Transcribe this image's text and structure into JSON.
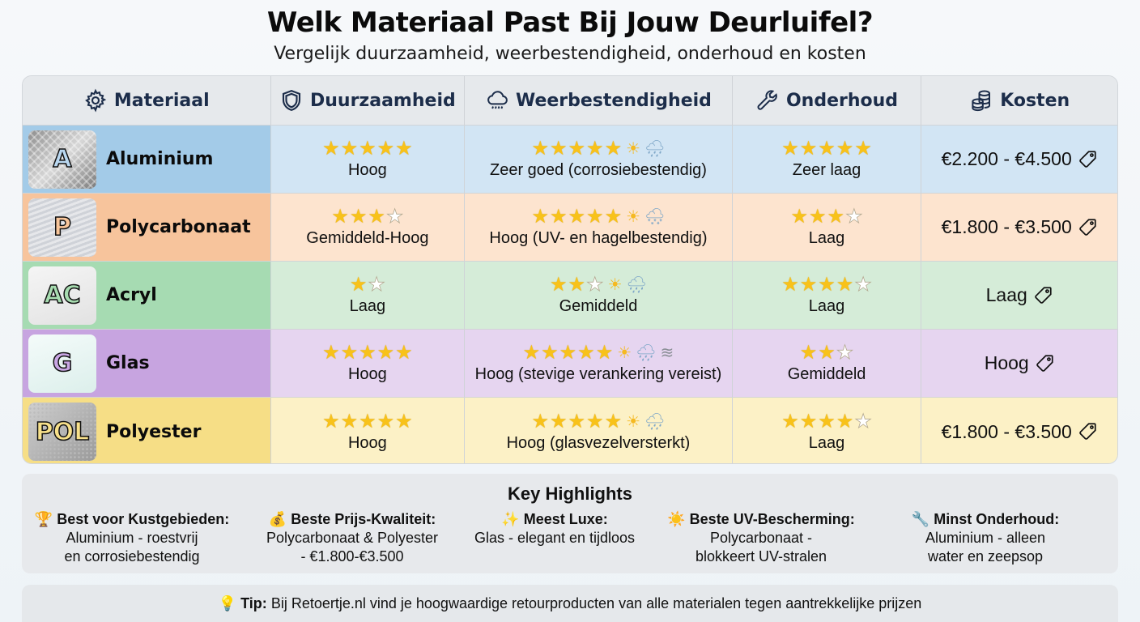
{
  "header": {
    "title": "Welk Materiaal Past Bij Jouw Deurluifel?",
    "subtitle": "Vergelijk duurzaamheid, weerbestendigheid, onderhoud en kosten"
  },
  "table": {
    "columns": [
      {
        "label": "Materiaal",
        "icon": "gear-icon"
      },
      {
        "label": "Duurzaamheid",
        "icon": "shield-icon"
      },
      {
        "label": "Weerbestendigheid",
        "icon": "rain-cloud-icon"
      },
      {
        "label": "Onderhoud",
        "icon": "wrench-icon"
      },
      {
        "label": "Kosten",
        "icon": "coins-icon"
      }
    ],
    "rows": [
      {
        "name": "Aluminium",
        "badge": "A",
        "row_color": "#a3cbe8",
        "cell_color": "#d2e5f4",
        "badge_fill": "#b9d7f0",
        "durability": {
          "stars": 5,
          "max": 5,
          "label": "Hoog"
        },
        "weather": {
          "stars": 5,
          "max": 5,
          "icons": [
            "sun",
            "rain"
          ],
          "label": "Zeer goed (corrosiebestendig)"
        },
        "maintenance": {
          "stars": 5,
          "max": 5,
          "label": "Zeer laag"
        },
        "cost": "€2.200 - €4.500"
      },
      {
        "name": "Polycarbonaat",
        "badge": "P",
        "row_color": "#f7c49c",
        "cell_color": "#fde4cf",
        "badge_fill": "#f8c59a",
        "durability": {
          "stars": 3,
          "max": 4,
          "label": "Gemiddeld-Hoog"
        },
        "weather": {
          "stars": 5,
          "max": 5,
          "icons": [
            "sun",
            "hail"
          ],
          "label": "Hoog (UV- en hagelbestendig)"
        },
        "maintenance": {
          "stars": 3,
          "max": 4,
          "label": "Laag"
        },
        "cost": "€1.800 - €3.500"
      },
      {
        "name": "Acryl",
        "badge": "AC",
        "row_color": "#a6dbb2",
        "cell_color": "#d5ecd8",
        "badge_fill": "#a7dcb0",
        "durability": {
          "stars": 1,
          "max": 2,
          "label": "Laag"
        },
        "weather": {
          "stars": 2,
          "max": 3,
          "icons": [
            "sun",
            "rain"
          ],
          "label": "Gemiddeld"
        },
        "maintenance": {
          "stars": 4,
          "max": 5,
          "label": "Laag"
        },
        "cost": "Laag"
      },
      {
        "name": "Glas",
        "badge": "G",
        "row_color": "#c7a4e0",
        "cell_color": "#e6d5f0",
        "badge_fill": "#c9a6e4",
        "durability": {
          "stars": 5,
          "max": 5,
          "label": "Hoog"
        },
        "weather": {
          "stars": 5,
          "max": 5,
          "icons": [
            "sun",
            "rain",
            "wind"
          ],
          "label": "Hoog (stevige verankering vereist)"
        },
        "maintenance": {
          "stars": 2,
          "max": 3,
          "label": "Gemiddeld"
        },
        "cost": "Hoog"
      },
      {
        "name": "Polyester",
        "badge": "POL",
        "row_color": "#f6de86",
        "cell_color": "#fcf1c6",
        "badge_fill": "#f7e08a",
        "durability": {
          "stars": 5,
          "max": 5,
          "label": "Hoog"
        },
        "weather": {
          "stars": 5,
          "max": 5,
          "icons": [
            "sun",
            "rain"
          ],
          "label": "Hoog (glasvezelversterkt)"
        },
        "maintenance": {
          "stars": 4,
          "max": 5,
          "label": "Laag"
        },
        "cost": "€1.800 - €3.500"
      }
    ]
  },
  "highlights": {
    "title": "Key Highlights",
    "items": [
      {
        "emoji": "🏆",
        "icon": "trophy-icon",
        "heading": "Best voor Kustgebieden:",
        "lines": [
          "Aluminium - roestvrij",
          "en corrosiebestendig"
        ]
      },
      {
        "emoji": "💰",
        "icon": "money-bag-icon",
        "heading": "Beste Prijs-Kwaliteit:",
        "lines": [
          "Polycarbonaat & Polyester",
          "- €1.800-€3.500"
        ]
      },
      {
        "emoji": "✨",
        "icon": "sparkles-icon",
        "heading": "Meest Luxe:",
        "lines": [
          "Glas - elegant en tijdloos"
        ]
      },
      {
        "emoji": "☀️",
        "icon": "sun-icon",
        "heading": "Beste UV-Bescherming:",
        "lines": [
          "Polycarbonaat -",
          "blokkeert UV-stralen"
        ]
      },
      {
        "emoji": "🔧",
        "icon": "wrench-icon",
        "heading": "Minst Onderhoud:",
        "lines": [
          "Aluminium - alleen",
          "water en zeepsop"
        ]
      }
    ]
  },
  "tip": {
    "emoji": "💡",
    "label": "Tip:",
    "text": " Bij Retoertje.nl vind je hoogwaardige retourproducten van alle materialen tegen aantrekkelijke prijzen"
  }
}
